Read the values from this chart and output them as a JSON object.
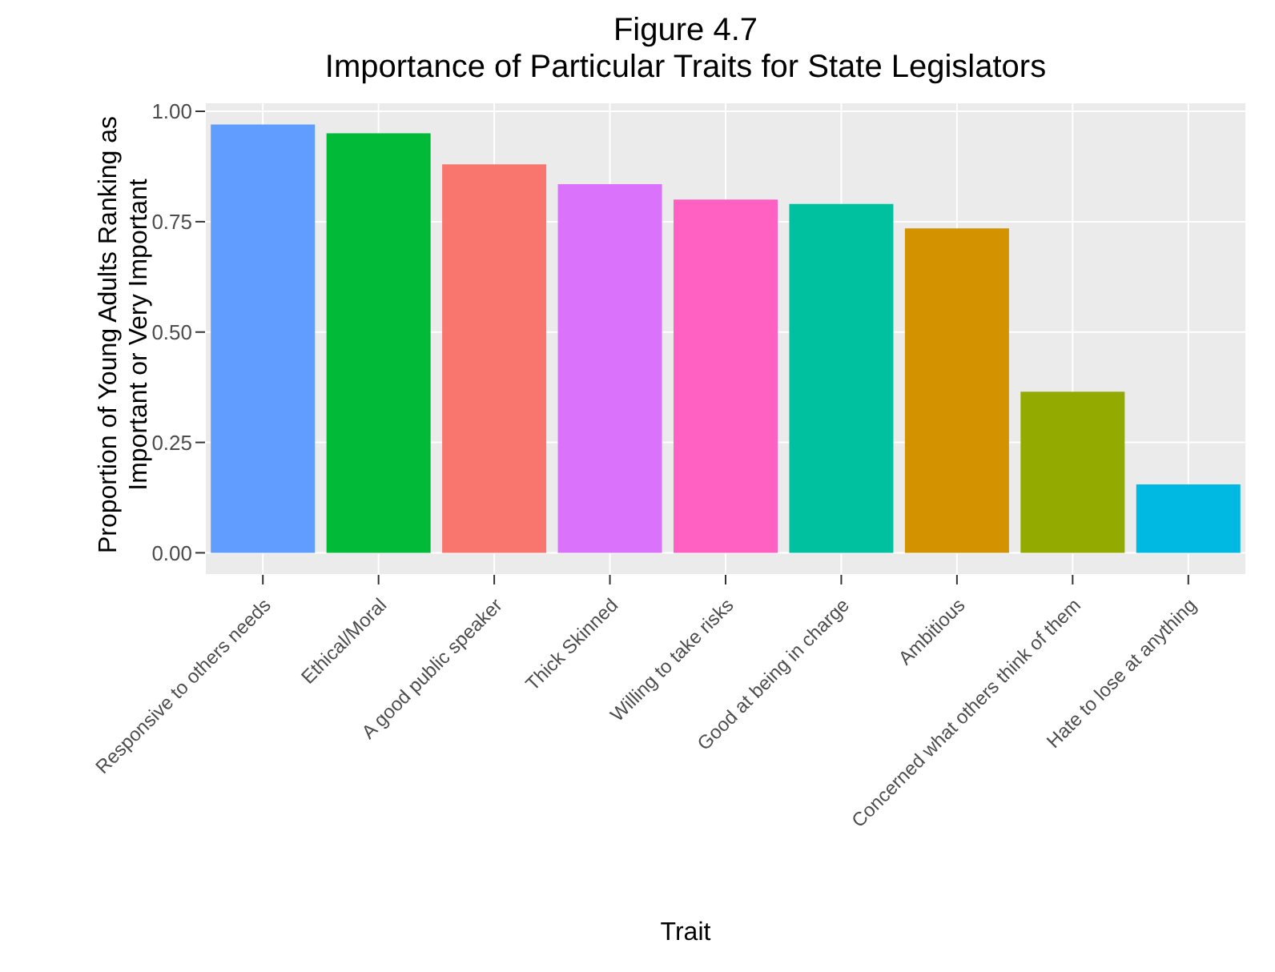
{
  "chart_data": {
    "type": "bar",
    "title": "Figure 4.7\nImportance of Particular Traits for State Legislators",
    "xlabel": "Trait",
    "ylabel": "Proportion of Young Adults Ranking as\nImportant or Very Important",
    "categories": [
      "Responsive to others needs",
      "Ethical/Moral",
      "A good public speaker",
      "Thick Skinned",
      "Willing to take risks",
      "Good at being in charge",
      "Ambitious",
      "Concerned what others think of them",
      "Hate to lose at anything"
    ],
    "values": [
      0.97,
      0.95,
      0.88,
      0.835,
      0.8,
      0.79,
      0.735,
      0.365,
      0.155
    ],
    "colors": [
      "#619cff",
      "#00ba38",
      "#f8766d",
      "#db72fb",
      "#ff61c3",
      "#00c19f",
      "#d39200",
      "#93aa00",
      "#00b9e3"
    ],
    "ylim": [
      -0.05,
      1.02
    ],
    "yticks": [
      {
        "value": 0,
        "label": "0.00"
      },
      {
        "value": 0.25,
        "label": "0.25"
      },
      {
        "value": 0.5,
        "label": "0.50"
      },
      {
        "value": 0.75,
        "label": "0.75"
      },
      {
        "value": 1,
        "label": "1.00"
      }
    ],
    "grid": true
  }
}
